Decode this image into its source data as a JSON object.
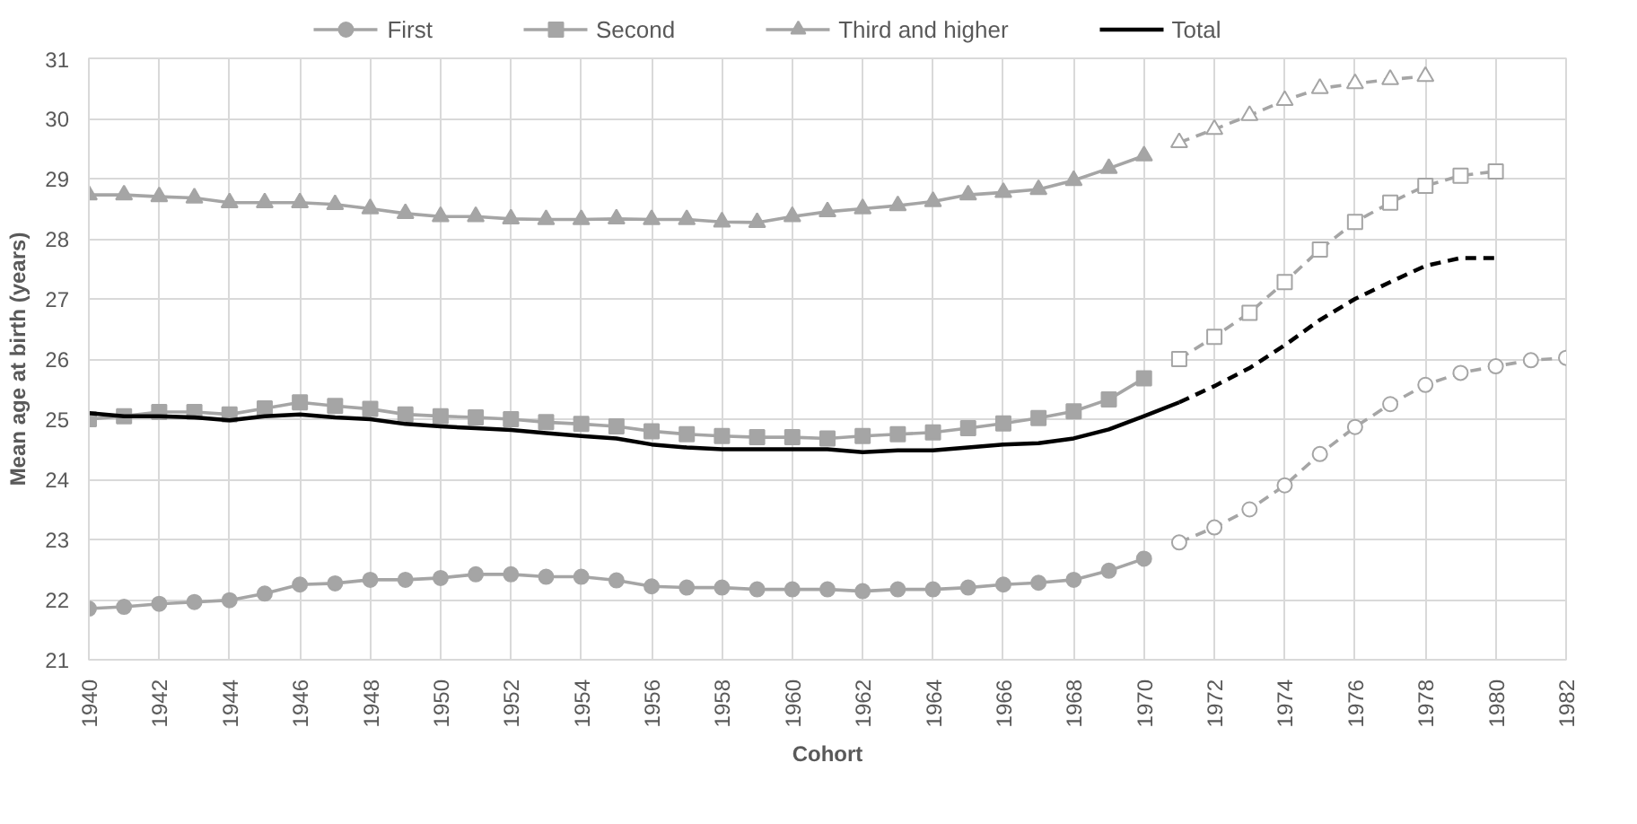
{
  "chart_data": {
    "type": "line",
    "xlabel": "Cohort",
    "ylabel": "Mean age at birth (years)",
    "xlim": [
      1940,
      1982
    ],
    "xticks": [
      1940,
      1942,
      1944,
      1946,
      1948,
      1950,
      1952,
      1954,
      1956,
      1958,
      1960,
      1962,
      1964,
      1966,
      1968,
      1970,
      1972,
      1974,
      1976,
      1978,
      1980,
      1982
    ],
    "ylim": [
      21,
      31
    ],
    "yticks": [
      21,
      22,
      23,
      24,
      25,
      26,
      27,
      28,
      29,
      30,
      31
    ],
    "grid": true,
    "legend": "top",
    "series": [
      {
        "name": "First",
        "color": "#a5a5a5",
        "marker": "circle",
        "line_style": "solid",
        "x": [
          1940,
          1941,
          1942,
          1943,
          1944,
          1945,
          1946,
          1947,
          1948,
          1949,
          1950,
          1951,
          1952,
          1953,
          1954,
          1955,
          1956,
          1957,
          1958,
          1959,
          1960,
          1961,
          1962,
          1963,
          1964,
          1965,
          1966,
          1967,
          1968,
          1969,
          1970
        ],
        "values": [
          21.85,
          21.88,
          21.93,
          21.96,
          21.99,
          22.1,
          22.25,
          22.27,
          22.33,
          22.33,
          22.36,
          22.42,
          22.42,
          22.38,
          22.38,
          22.32,
          22.22,
          22.2,
          22.2,
          22.17,
          22.17,
          22.17,
          22.14,
          22.17,
          22.17,
          22.2,
          22.25,
          22.28,
          22.33,
          22.48,
          22.68
        ]
      },
      {
        "color": "#a5a5a5",
        "marker": "circle",
        "line_style": "dashed",
        "x": [
          1971,
          1972,
          1973,
          1974,
          1975,
          1976,
          1977,
          1978,
          1979,
          1980,
          1981,
          1982
        ],
        "values": [
          22.95,
          23.2,
          23.5,
          23.9,
          24.42,
          24.87,
          25.25,
          25.57,
          25.77,
          25.88,
          25.98,
          26.02
        ]
      },
      {
        "name": "Second",
        "color": "#a5a5a5",
        "marker": "square",
        "line_style": "solid",
        "x": [
          1940,
          1941,
          1942,
          1943,
          1944,
          1945,
          1946,
          1947,
          1948,
          1949,
          1950,
          1951,
          1952,
          1953,
          1954,
          1955,
          1956,
          1957,
          1958,
          1959,
          1960,
          1961,
          1962,
          1963,
          1964,
          1965,
          1966,
          1967,
          1968,
          1969,
          1970
        ],
        "values": [
          25.0,
          25.05,
          25.12,
          25.12,
          25.08,
          25.18,
          25.28,
          25.22,
          25.17,
          25.08,
          25.05,
          25.03,
          25.0,
          24.95,
          24.92,
          24.88,
          24.8,
          24.75,
          24.72,
          24.7,
          24.7,
          24.68,
          24.72,
          24.75,
          24.78,
          24.85,
          24.93,
          25.02,
          25.13,
          25.33,
          25.68
        ]
      },
      {
        "color": "#a5a5a5",
        "marker": "square",
        "line_style": "dashed",
        "x": [
          1971,
          1972,
          1973,
          1974,
          1975,
          1976,
          1977,
          1978,
          1979,
          1980
        ],
        "values": [
          26.0,
          26.37,
          26.77,
          27.28,
          27.82,
          28.28,
          28.6,
          28.88,
          29.05,
          29.12
        ]
      },
      {
        "name": "Third and higher",
        "color": "#a5a5a5",
        "marker": "triangle",
        "line_style": "solid",
        "x": [
          1940,
          1941,
          1942,
          1943,
          1944,
          1945,
          1946,
          1947,
          1948,
          1949,
          1950,
          1951,
          1952,
          1953,
          1954,
          1955,
          1956,
          1957,
          1958,
          1959,
          1960,
          1961,
          1962,
          1963,
          1964,
          1965,
          1966,
          1967,
          1968,
          1969,
          1970
        ],
        "values": [
          28.73,
          28.73,
          28.7,
          28.68,
          28.6,
          28.6,
          28.6,
          28.57,
          28.5,
          28.42,
          28.37,
          28.37,
          28.33,
          28.32,
          28.32,
          28.33,
          28.32,
          28.32,
          28.28,
          28.27,
          28.37,
          28.45,
          28.5,
          28.55,
          28.62,
          28.73,
          28.77,
          28.82,
          28.97,
          29.17,
          29.38
        ]
      },
      {
        "color": "#a5a5a5",
        "marker": "triangle",
        "line_style": "dashed",
        "x": [
          1971,
          1972,
          1973,
          1974,
          1975,
          1976,
          1977,
          1978
        ],
        "values": [
          29.6,
          29.82,
          30.05,
          30.3,
          30.5,
          30.58,
          30.65,
          30.7
        ]
      },
      {
        "name": "Total",
        "color": "#000000",
        "marker": "none",
        "line_style": "solid",
        "x": [
          1940,
          1941,
          1942,
          1943,
          1944,
          1945,
          1946,
          1947,
          1948,
          1949,
          1950,
          1951,
          1952,
          1953,
          1954,
          1955,
          1956,
          1957,
          1958,
          1959,
          1960,
          1961,
          1962,
          1963,
          1964,
          1965,
          1966,
          1967,
          1968,
          1969,
          1970,
          1971
        ],
        "values": [
          25.1,
          25.05,
          25.05,
          25.03,
          24.98,
          25.05,
          25.08,
          25.03,
          25.0,
          24.92,
          24.88,
          24.85,
          24.82,
          24.77,
          24.72,
          24.68,
          24.58,
          24.53,
          24.5,
          24.5,
          24.5,
          24.5,
          24.45,
          24.48,
          24.48,
          24.53,
          24.58,
          24.6,
          24.68,
          24.83,
          25.05,
          25.28
        ]
      },
      {
        "color": "#000000",
        "marker": "none",
        "line_style": "dashed",
        "x": [
          1971,
          1972,
          1973,
          1974,
          1975,
          1976,
          1977,
          1978,
          1979,
          1980
        ],
        "values": [
          25.28,
          25.55,
          25.85,
          26.23,
          26.65,
          27.0,
          27.28,
          27.55,
          27.68,
          27.68
        ]
      }
    ]
  }
}
